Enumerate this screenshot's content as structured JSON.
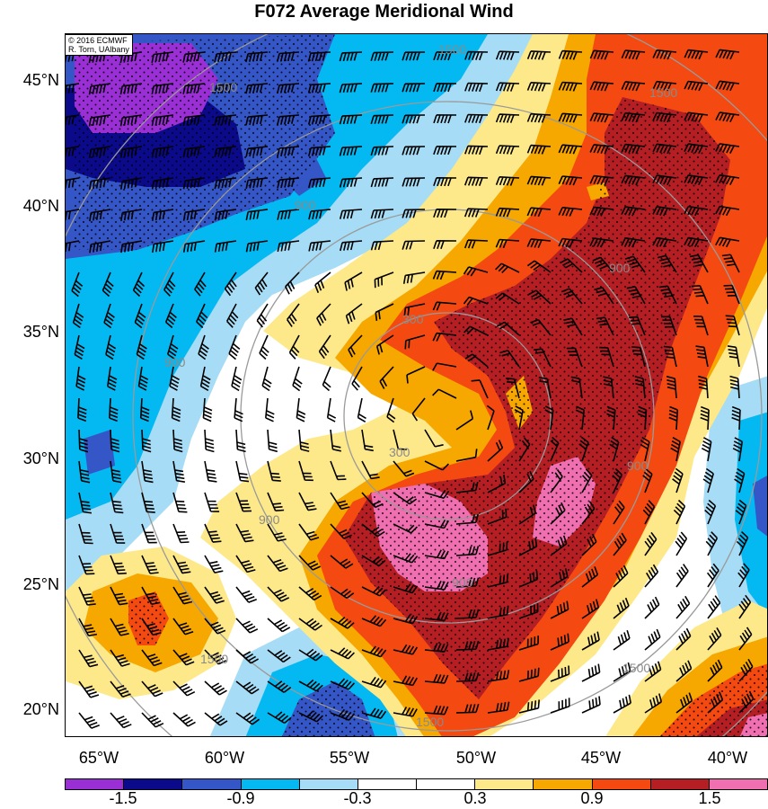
{
  "title": "F072 Average Meridional Wind",
  "credit": [
    "© 2016 ECMWF",
    "R. Torn, UAlbany"
  ],
  "lat_labels": [
    "45°N",
    "40°N",
    "35°N",
    "30°N",
    "25°N",
    "20°N"
  ],
  "lon_labels": [
    "65°W",
    "60°W",
    "55°W",
    "50°W",
    "45°W",
    "40°W"
  ],
  "colorbar": {
    "colors": [
      "#9b2fd6",
      "#0a0a8a",
      "#3556c6",
      "#04b8f2",
      "#a6dcf5",
      "#ffffff",
      "#ffffff",
      "#fde98a",
      "#f6a700",
      "#f44a12",
      "#b51f24",
      "#ef6fb0"
    ],
    "tick_labels": [
      "-1.5",
      "-0.9",
      "-0.3",
      "0.3",
      "0.9",
      "1.5"
    ]
  },
  "range_ring_labels": [
    "1500",
    "900",
    "300"
  ],
  "colors": {
    "ring": "#9a9a9a",
    "barb": "#000000",
    "stipple": "#000000"
  }
}
